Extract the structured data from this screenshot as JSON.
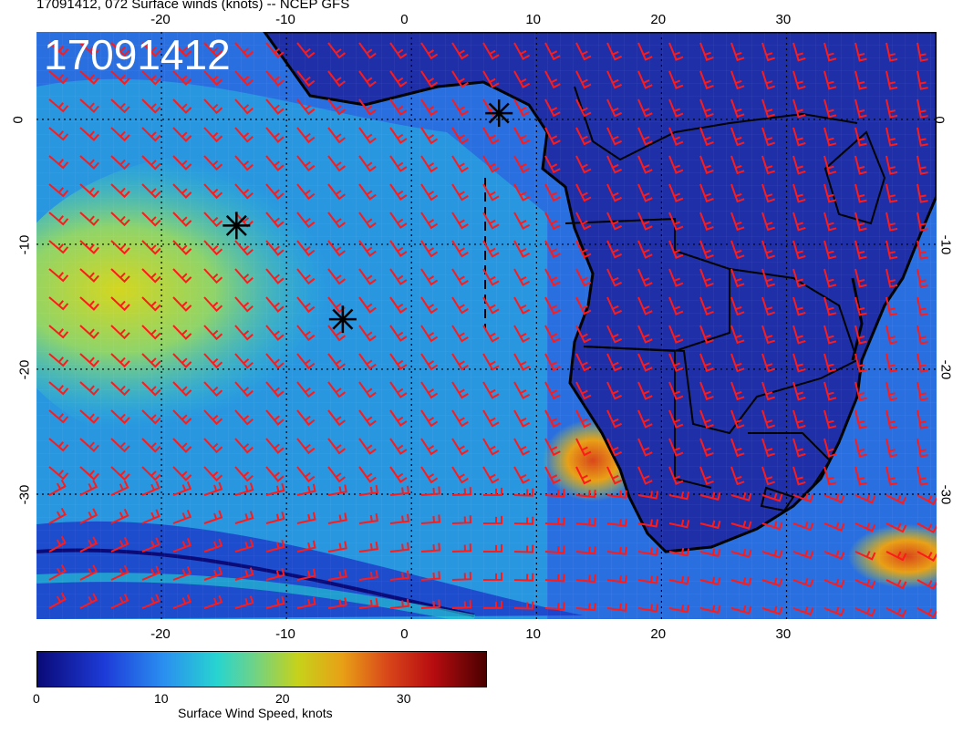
{
  "title": "17091412, 072 Surface winds (knots) -- NCEP GFS",
  "timestamp": "17091412",
  "map": {
    "lon_ticks": [
      "-20",
      "-10",
      "0",
      "10",
      "20",
      "30"
    ],
    "lat_ticks": [
      "0",
      "-10",
      "-20",
      "-30"
    ],
    "lon_range": [
      -30,
      42
    ],
    "lat_range": [
      -40,
      7
    ],
    "storm_markers": [
      {
        "name": "marker-1",
        "lon": 7,
        "lat": 0.5
      },
      {
        "name": "marker-2",
        "lon": -14,
        "lat": -8.5
      },
      {
        "name": "marker-3",
        "lon": -5.5,
        "lat": -16
      }
    ],
    "colors": {
      "barb": "#ff1a1a",
      "ocean_low": "#1d3bd8",
      "ocean_mid": "#27d4d0",
      "high": "#c6d21b",
      "peak": "#d9471a",
      "land": "#1a2fb8"
    }
  },
  "colorbar": {
    "ticks": [
      "0",
      "10",
      "20",
      "30"
    ],
    "label": "Surface Wind Speed, knots",
    "range": [
      0,
      37
    ]
  }
}
